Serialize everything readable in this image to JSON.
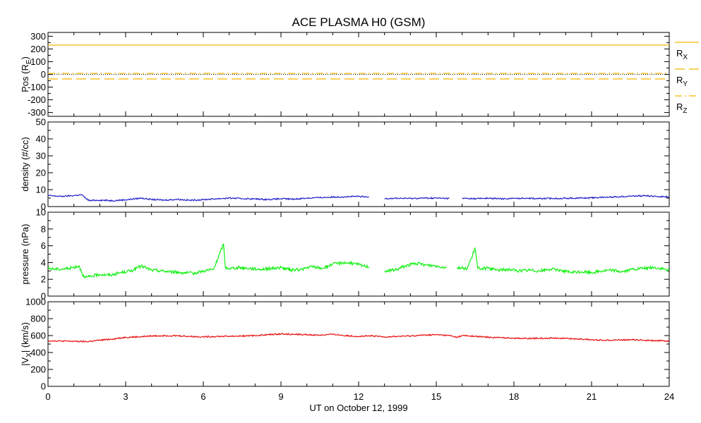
{
  "title": "ACE PLASMA H0 (GSM)",
  "xlabel": "UT on October 12, 1999",
  "chart_data": {
    "type": "line",
    "title": "ACE PLASMA H0 (GSM)",
    "xlabel": "UT on October 12, 1999",
    "xlim": [
      0,
      24
    ],
    "xticks": [
      "0",
      "3",
      "6",
      "9",
      "12",
      "15",
      "18",
      "21",
      "24"
    ],
    "panels": [
      {
        "id": "pos",
        "ylabel_main": "Pos (R",
        "ylabel_sub": "E",
        "ylabel_end": ")",
        "ylim": [
          -330,
          330
        ],
        "yticks": [
          "300",
          "200",
          "100",
          "0",
          "-100",
          "-200",
          "-300"
        ],
        "zero_line": true,
        "series": [
          {
            "name_main": "R",
            "name_sub": "X",
            "color": "#f5b800",
            "dash": "solid",
            "x": [
              0,
              24
            ],
            "y": [
              231,
              231
            ]
          },
          {
            "name_main": "R",
            "name_sub": "Y",
            "color": "#f5b800",
            "dash": "long-dash",
            "x": [
              0,
              24
            ],
            "y": [
              -36,
              -36
            ]
          },
          {
            "name_main": "R",
            "name_sub": "Z",
            "color": "#f5b800",
            "dash": "dash-dot",
            "x": [
              0,
              24
            ],
            "y": [
              8,
              8
            ]
          }
        ]
      },
      {
        "id": "density",
        "ylabel_main": "density (#/cc)",
        "ylim": [
          0,
          50
        ],
        "yticks": [
          "50",
          "40",
          "30",
          "20",
          "10",
          "0"
        ],
        "series": [
          {
            "color": "#2020c8",
            "x": [
              0,
              0.5,
              1.0,
              1.3,
              1.45,
              1.6,
              2.0,
              2.5,
              3.0,
              3.6,
              4.0,
              4.5,
              5.0,
              5.5,
              6.0,
              6.5,
              7.0,
              7.5,
              8.0,
              8.5,
              9.0,
              9.5,
              10.0,
              10.5,
              11.0,
              11.5,
              12.0,
              12.4,
              12.7,
              13.0,
              13.5,
              14.0,
              14.5,
              15.0,
              15.5,
              15.8,
              16.0,
              16.5,
              17.0,
              17.5,
              18.0,
              18.5,
              19.0,
              19.5,
              20.0,
              20.5,
              21.0,
              21.5,
              22.0,
              22.5,
              23.0,
              23.5,
              24.0
            ],
            "y": [
              6.5,
              6.0,
              6.5,
              7.0,
              5.0,
              3.5,
              3.8,
              3.5,
              4.0,
              5.0,
              4.2,
              3.8,
              4.3,
              3.7,
              4.1,
              4.6,
              5.0,
              4.7,
              4.5,
              4.2,
              4.6,
              4.4,
              5.0,
              5.3,
              5.6,
              5.8,
              6.0,
              5.5,
              null,
              4.8,
              4.9,
              4.8,
              5.0,
              5.0,
              4.8,
              null,
              4.8,
              4.7,
              4.9,
              4.6,
              4.8,
              5.0,
              4.7,
              4.8,
              4.9,
              5.0,
              5.2,
              5.5,
              5.8,
              6.2,
              6.4,
              6.0,
              5.8
            ]
          }
        ]
      },
      {
        "id": "pressure",
        "ylabel_main": "pressure (nPa)",
        "ylim": [
          0,
          10
        ],
        "yticks": [
          "10",
          "8",
          "6",
          "4",
          "2",
          "0"
        ],
        "series": [
          {
            "color": "#10f010",
            "x": [
              0,
              0.4,
              0.8,
              1.2,
              1.4,
              1.6,
              2.0,
              2.4,
              2.8,
              3.2,
              3.6,
              4.0,
              4.4,
              4.8,
              5.2,
              5.6,
              6.0,
              6.4,
              6.78,
              6.85,
              7.0,
              7.4,
              7.8,
              8.2,
              8.6,
              9.0,
              9.4,
              9.8,
              10.2,
              10.6,
              11.0,
              11.4,
              11.8,
              12.2,
              12.4,
              12.7,
              13.0,
              13.4,
              13.8,
              14.2,
              14.6,
              15.0,
              15.4,
              15.5,
              15.8,
              16.2,
              16.5,
              16.6,
              17.0,
              17.4,
              17.8,
              18.2,
              18.6,
              19.0,
              19.4,
              19.8,
              20.2,
              20.6,
              21.0,
              21.4,
              21.8,
              22.2,
              22.6,
              23.0,
              23.4,
              23.8,
              24.0
            ],
            "y": [
              3.3,
              3.2,
              3.3,
              3.6,
              2.2,
              2.3,
              2.6,
              2.5,
              2.8,
              3.0,
              3.6,
              3.1,
              3.0,
              2.9,
              2.8,
              2.7,
              3.0,
              3.2,
              6.2,
              3.4,
              3.3,
              3.4,
              3.3,
              3.2,
              3.3,
              3.4,
              3.1,
              3.2,
              3.5,
              3.3,
              3.8,
              4.0,
              3.9,
              3.6,
              3.5,
              null,
              3.0,
              3.1,
              3.6,
              3.9,
              3.7,
              3.6,
              3.4,
              null,
              3.4,
              3.3,
              5.7,
              3.3,
              3.3,
              3.1,
              3.2,
              3.0,
              3.1,
              3.0,
              3.2,
              3.1,
              2.8,
              2.9,
              2.8,
              3.0,
              3.1,
              2.9,
              3.2,
              3.3,
              3.4,
              3.2,
              3.1
            ]
          }
        ]
      },
      {
        "id": "vx",
        "ylabel_main": "|V",
        "ylabel_sub": "X",
        "ylabel_end": "| (km/s)",
        "ylim": [
          0,
          1000
        ],
        "yticks": [
          "1000",
          "800",
          "600",
          "400",
          "200",
          "0"
        ],
        "series": [
          {
            "color": "#e81010",
            "x": [
              0,
              0.5,
              1.0,
              1.5,
              2.0,
              2.5,
              3.0,
              3.5,
              4.0,
              4.5,
              5.0,
              5.5,
              6.0,
              6.5,
              7.0,
              7.5,
              8.0,
              8.5,
              9.0,
              9.5,
              10.0,
              10.5,
              11.0,
              11.5,
              12.0,
              12.5,
              13.0,
              13.5,
              14.0,
              14.5,
              15.0,
              15.5,
              15.8,
              16.0,
              16.5,
              17.0,
              17.5,
              18.0,
              18.5,
              19.0,
              19.5,
              20.0,
              20.5,
              21.0,
              21.5,
              22.0,
              22.5,
              23.0,
              23.5,
              24.0
            ],
            "y": [
              540,
              535,
              532,
              528,
              545,
              560,
              580,
              585,
              595,
              600,
              598,
              590,
              585,
              590,
              592,
              595,
              600,
              610,
              620,
              615,
              610,
              605,
              615,
              600,
              590,
              595,
              585,
              590,
              595,
              605,
              610,
              600,
              580,
              600,
              590,
              580,
              575,
              570,
              565,
              568,
              572,
              566,
              560,
              550,
              545,
              548,
              552,
              545,
              540,
              535
            ]
          }
        ]
      }
    ]
  }
}
